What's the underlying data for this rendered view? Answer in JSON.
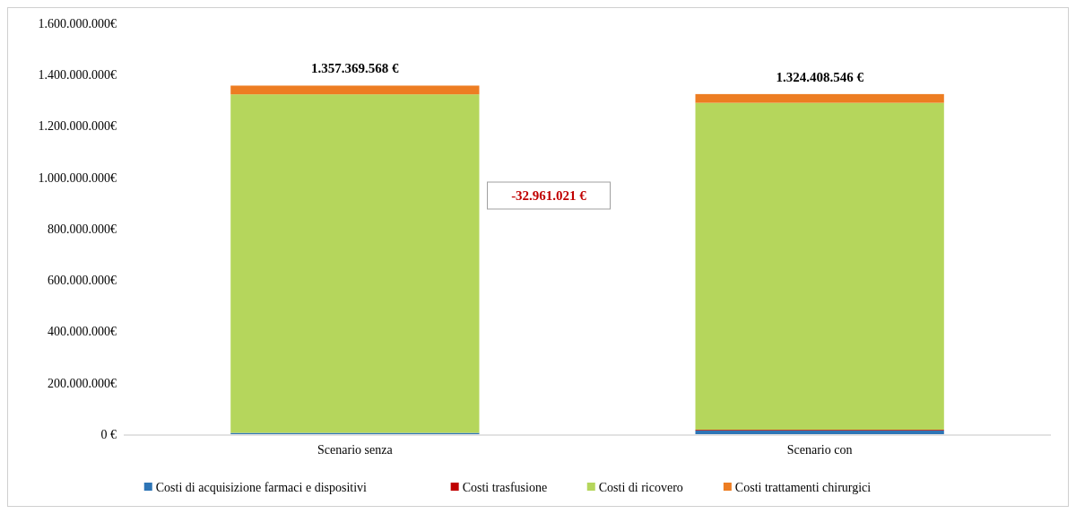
{
  "chart_data": {
    "type": "bar",
    "stacked": true,
    "categories": [
      "Scenario senza",
      "Scenario con"
    ],
    "series": [
      {
        "name": "Costi di acquisizione farmaci e dispositivi",
        "color": "#2e75b6",
        "values": [
          5000000,
          14000000
        ]
      },
      {
        "name": "Costi trasfusione",
        "color": "#c00000",
        "values": [
          null,
          3000000
        ]
      },
      {
        "name": "Costi di ricovero",
        "color": "#b5d65c",
        "values": [
          1318369568,
          1273408546
        ]
      },
      {
        "name": "Costi trattamenti chirurgici",
        "color": "#ed7d22",
        "values": [
          34000000,
          34000000
        ]
      }
    ],
    "totals": [
      "1.357.369.568 €",
      "1.324.408.546 €"
    ],
    "annotations": [
      "-32.961.021 €"
    ],
    "ylim": [
      0,
      1600000000
    ],
    "yticks": [
      {
        "value": 0,
        "label": "0 €"
      },
      {
        "value": 200000000,
        "label": "200.000.000€"
      },
      {
        "value": 400000000,
        "label": "400.000.000€"
      },
      {
        "value": 600000000,
        "label": "600.000.000€"
      },
      {
        "value": 800000000,
        "label": "800.000.000€"
      },
      {
        "value": 1000000000,
        "label": "1.000.000.000€"
      },
      {
        "value": 1200000000,
        "label": "1.200.000.000€"
      },
      {
        "value": 1400000000,
        "label": "1.400.000.000€"
      },
      {
        "value": 1600000000,
        "label": "1.600.000.000€"
      }
    ],
    "grid": false,
    "legend": "bottom"
  }
}
